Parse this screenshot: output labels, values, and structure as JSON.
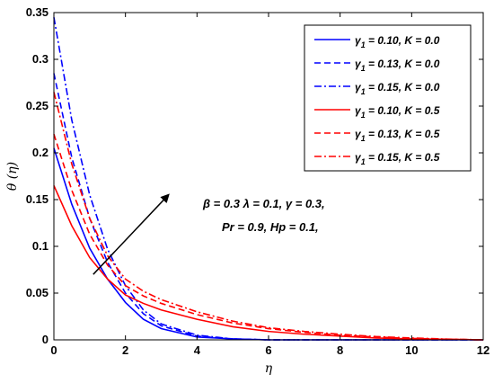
{
  "chart_data": {
    "type": "line",
    "xlabel": "η",
    "ylabel": "θ (η)",
    "xlim": [
      0,
      12
    ],
    "ylim": [
      0,
      0.35
    ],
    "xticks": [
      "0",
      "2",
      "4",
      "6",
      "8",
      "10",
      "12"
    ],
    "yticks": [
      "0",
      "0.05",
      "0.1",
      "0.15",
      "0.2",
      "0.25",
      "0.3",
      "0.35"
    ],
    "grid": false,
    "legend_position": "top-right",
    "x": [
      0,
      0.5,
      1,
      1.5,
      2,
      2.5,
      3,
      4,
      5,
      6,
      7,
      8,
      9,
      10,
      11,
      12
    ],
    "series": [
      {
        "name": "γ1 = 0.10, K = 0.0",
        "legend_text": {
          "sym": "γ",
          "sub": "1",
          "rest": " = 0.10, K = 0.0"
        },
        "color": "#0000ff",
        "dash": "solid",
        "values": [
          0.205,
          0.145,
          0.098,
          0.065,
          0.04,
          0.022,
          0.012,
          0.003,
          0.001,
          0,
          0,
          0,
          0,
          0,
          0,
          0
        ]
      },
      {
        "name": "γ1 = 0.13, K = 0.0",
        "legend_text": {
          "sym": "γ",
          "sub": "1",
          "rest": " = 0.13, K = 0.0"
        },
        "color": "#0000ff",
        "dash": "dashed",
        "values": [
          0.285,
          0.195,
          0.13,
          0.083,
          0.05,
          0.028,
          0.015,
          0.004,
          0.001,
          0,
          0,
          0,
          0,
          0,
          0,
          0
        ]
      },
      {
        "name": "γ1 = 0.15, K = 0.0",
        "legend_text": {
          "sym": "γ",
          "sub": "1",
          "rest": " = 0.15, K = 0.0"
        },
        "color": "#0000ff",
        "dash": "dashdot",
        "values": [
          0.345,
          0.235,
          0.155,
          0.097,
          0.058,
          0.032,
          0.017,
          0.005,
          0.001,
          0,
          0,
          0,
          0,
          0,
          0,
          0
        ]
      },
      {
        "name": "γ1 = 0.10, K = 0.5",
        "legend_text": {
          "sym": "γ",
          "sub": "1",
          "rest": " = 0.10, K = 0.5"
        },
        "color": "#ff0000",
        "dash": "solid",
        "values": [
          0.165,
          0.122,
          0.088,
          0.065,
          0.048,
          0.039,
          0.032,
          0.022,
          0.014,
          0.009,
          0.006,
          0.004,
          0.002,
          0.001,
          0.0005,
          0
        ]
      },
      {
        "name": "γ1 = 0.13, K = 0.5",
        "legend_text": {
          "sym": "γ",
          "sub": "1",
          "rest": " = 0.13, K = 0.5"
        },
        "color": "#ff0000",
        "dash": "dashed",
        "values": [
          0.22,
          0.16,
          0.113,
          0.08,
          0.058,
          0.047,
          0.039,
          0.027,
          0.018,
          0.012,
          0.008,
          0.005,
          0.003,
          0.0015,
          0.0007,
          0
        ]
      },
      {
        "name": "γ1 = 0.15, K = 0.5",
        "legend_text": {
          "sym": "γ",
          "sub": "1",
          "rest": " = 0.15, K = 0.5"
        },
        "color": "#ff0000",
        "dash": "dashdot",
        "values": [
          0.265,
          0.188,
          0.13,
          0.09,
          0.065,
          0.052,
          0.043,
          0.03,
          0.02,
          0.013,
          0.009,
          0.006,
          0.0035,
          0.002,
          0.0008,
          0
        ]
      }
    ],
    "annotations": [
      {
        "text": "β = 0.3  λ = 0.1,  γ = 0.3,"
      },
      {
        "text": "Pr = 0.9,  Hp = 0.1,"
      }
    ],
    "arrow": {
      "from": [
        1.1,
        0.07
      ],
      "to": [
        3.2,
        0.155
      ]
    }
  }
}
